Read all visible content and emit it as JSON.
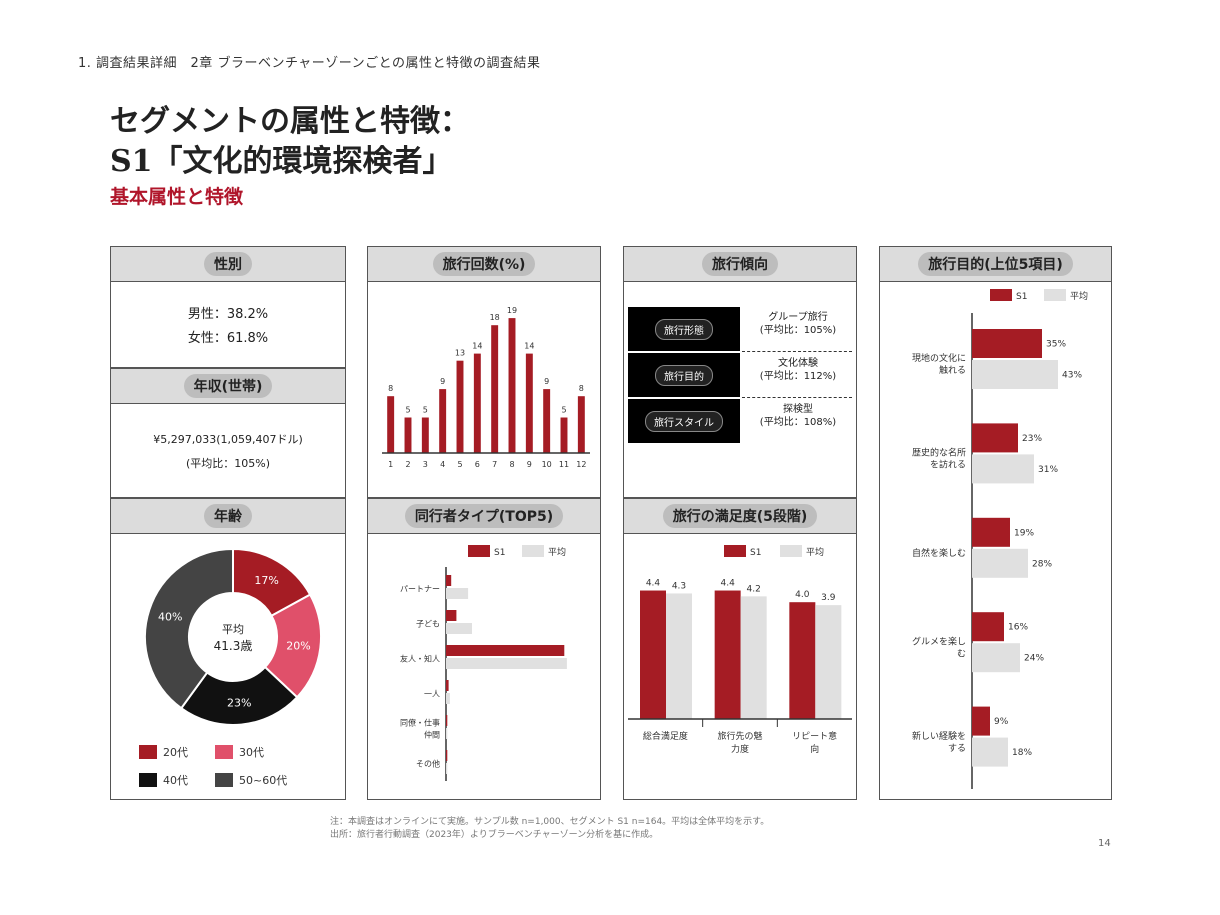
{
  "header": {
    "breadcrumb": "1. 調査結果詳細　2章 ブラーベンチャーゾーンごとの属性と特徴の調査結果",
    "title_line1": "セグメントの属性と特徴：",
    "title_line2": "S1「文化的環境探検者」",
    "subtitle": "基本属性と特徴"
  },
  "colors": {
    "accent": "#a51c24",
    "pink": "#e0506a",
    "black": "#111111",
    "dark": "#444444",
    "light": "#e0e0e0"
  },
  "gender": {
    "title": "性別",
    "male": "男性：38.2%",
    "female": "女性：61.8%"
  },
  "income": {
    "title": "年収(世帯)",
    "line1": "¥5,297,033(1,059,407ドル)",
    "line2": "(平均比：105%)"
  },
  "age": {
    "title": "年齢",
    "center1": "平均",
    "center2": "41.3歳",
    "chart_data": {
      "type": "pie",
      "categories": [
        "20代",
        "30代",
        "40代",
        "50~60代"
      ],
      "values": [
        17,
        20,
        23,
        40
      ],
      "labels": [
        "17%",
        "20%",
        "23%",
        "40%"
      ]
    },
    "legend": [
      "20代",
      "30代",
      "40代",
      "50~60代"
    ]
  },
  "trips": {
    "title": "旅行回数(%)",
    "chart_data": {
      "type": "bar",
      "categories": [
        "1",
        "2",
        "3",
        "4",
        "5",
        "6",
        "7",
        "8",
        "9",
        "10",
        "11",
        "12"
      ],
      "values": [
        8,
        5,
        5,
        9,
        13,
        14,
        18,
        19,
        14,
        9,
        5,
        8
      ],
      "labels": [
        "8",
        "5",
        "5",
        "9",
        "13",
        "14",
        "18",
        "19",
        "14",
        "9",
        "5",
        "8"
      ]
    }
  },
  "trend": {
    "title": "旅行傾向",
    "items": [
      {
        "label": "旅行形態",
        "value1": "グループ旅行",
        "value2": "(平均比：105%)"
      },
      {
        "label": "旅行目的",
        "value1": "文化体験",
        "value2": "(平均比：112%)"
      },
      {
        "label": "旅行スタイル",
        "value1": "探検型",
        "value2": "(平均比：108%)"
      }
    ]
  },
  "companion": {
    "title": "同行者タイプ(TOP5)",
    "legend": [
      "S1",
      "平均"
    ],
    "chart_data": {
      "type": "bar",
      "categories": [
        "パートナー",
        "子ども",
        "友人・知人",
        "一人",
        "同僚・仕事仲間",
        "その他"
      ],
      "series": [
        {
          "name": "S1",
          "values": [
            4,
            8,
            91,
            2,
            1,
            1
          ]
        },
        {
          "name": "平均",
          "values": [
            17,
            20,
            93,
            3,
            1,
            1
          ]
        }
      ],
      "xlim": [
        0,
        100
      ]
    }
  },
  "satisfaction": {
    "title": "旅行の満足度(5段階)",
    "legend": [
      "S1",
      "平均"
    ],
    "chart_data": {
      "type": "bar",
      "categories": [
        "総合満足度",
        "旅行先の魅力度",
        "リピート意向"
      ],
      "series": [
        {
          "name": "S1",
          "values": [
            4.4,
            4.4,
            4.0
          ],
          "labels": [
            "4.4",
            "4.4",
            "4.0"
          ]
        },
        {
          "name": "平均",
          "values": [
            4.3,
            4.2,
            3.9
          ],
          "labels": [
            "4.3",
            "4.2",
            "3.9"
          ]
        }
      ],
      "ylim": [
        0,
        5
      ]
    }
  },
  "purpose": {
    "title": "旅行目的(上位5項目)",
    "legend": [
      "S1",
      "平均"
    ],
    "chart_data": {
      "type": "bar",
      "categories": [
        "現地の文化に触れる",
        "歴史的な名所を訪れる",
        "自然を楽しむ",
        "グルメを楽しむ",
        "新しい経験をする"
      ],
      "series": [
        {
          "name": "S1",
          "values": [
            35,
            23,
            19,
            16,
            9
          ],
          "labels": [
            "35%",
            "23%",
            "19%",
            "16%",
            "9%"
          ]
        },
        {
          "name": "平均",
          "values": [
            43,
            31,
            28,
            24,
            18
          ],
          "labels": [
            "43%",
            "31%",
            "28%",
            "24%",
            "18%"
          ]
        }
      ],
      "xlim": [
        0,
        50
      ]
    }
  },
  "footer": {
    "note1": "注：本調査はオンラインにて実施。サンプル数 n=1,000、セグメント S1 n=164。平均は全体平均を示す。",
    "note2": "出所：旅行者行動調査（2023年）よりブラーベンチャーゾーン分析を基に作成。",
    "page": "14"
  }
}
